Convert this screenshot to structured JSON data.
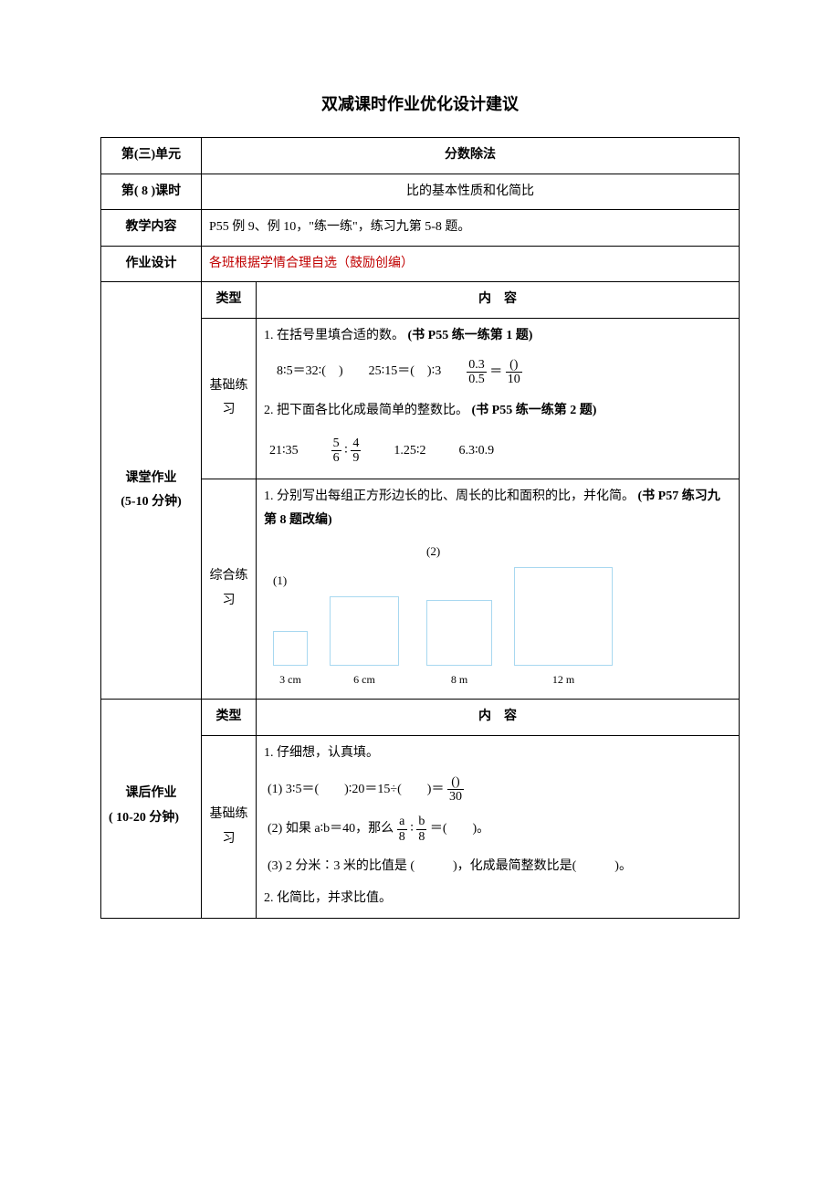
{
  "title": "双减课时作业优化设计建议",
  "header_rows": {
    "unit_label": "第(三)单元",
    "unit_title": "分数除法",
    "lesson_label": "第(  8  )课时",
    "lesson_title": "比的基本性质和化简比",
    "teach_label": "教学内容",
    "teach_content": "P55 例 9、例 10，\"练一练\"，练习九第 5-8 题。",
    "hw_label": "作业设计",
    "hw_content": "各班根据学情合理自选（鼓励创编）"
  },
  "col_headers": {
    "type": "类型",
    "content": "内　容"
  },
  "sections": {
    "classwork": {
      "label_l1": "课堂作业",
      "label_l2": "(5-10 分钟)",
      "basic": {
        "type_label": "基础练习",
        "q1_text": "1. 在括号里填合适的数。",
        "q1_ref": "(书 P55 练一练第 1 题)",
        "q1_eq1": "8∶5＝32∶(　)",
        "q1_eq2": "25∶15＝(　)∶3",
        "q1_frac_lnum": "0.3",
        "q1_frac_lden": "0.5",
        "q1_frac_eq": "＝",
        "q1_frac_rnum": "()",
        "q1_frac_rden": "10",
        "q2_text": "2. 把下面各比化成最简单的整数比。",
        "q2_ref": "(书 P55 练一练第 2 题)",
        "q2_eq1": "21∶35",
        "q2_f1_num": "5",
        "q2_f1_den": "6",
        "q2_colon": "∶",
        "q2_f2_num": "4",
        "q2_f2_den": "9",
        "q2_eq3": "1.25∶2",
        "q2_eq4": "6.3∶0.9"
      },
      "comp": {
        "type_label": "综合练习",
        "q1_text": "1.  分别写出每组正方形边长的比、周长的比和面积的比，并化简。",
        "q1_ref": "(书 P57 练习九第 8 题改编)",
        "squares": [
          {
            "group": "(1)",
            "items": [
              {
                "size": 38,
                "label": "3 cm"
              },
              {
                "size": 76,
                "label": "6 cm"
              }
            ]
          },
          {
            "group": "(2)",
            "items": [
              {
                "size": 72,
                "label": "8 m"
              },
              {
                "size": 108,
                "label": "12 m"
              }
            ]
          }
        ]
      }
    },
    "homework": {
      "label_l1": "课后作业",
      "label_l2": "( 10-20 分钟)",
      "basic": {
        "type_label": "基础练习",
        "q1_header": "1.  仔细想，认真填。",
        "q1a_prefix": "(1) 3∶5＝(　　)∶20＝15÷(　　)＝",
        "q1a_frac_num": "()",
        "q1a_frac_den": "30",
        "q1b_prefix": "(2) 如果 a∶b＝40，那么",
        "q1b_f1_num": "a",
        "q1b_f1_den": "8",
        "q1b_colon": "∶",
        "q1b_f2_num": "b",
        "q1b_f2_den": "8",
        "q1b_suffix": "＝(　　)。",
        "q1c": "(3) 2 分米∶3 米的比值是 (　　　)，化成最简整数比是(　　　)。",
        "q2": "2.  化简比，并求比值。"
      }
    }
  },
  "colors": {
    "square_border": "#a8d8f0",
    "red_text": "#c00000"
  }
}
